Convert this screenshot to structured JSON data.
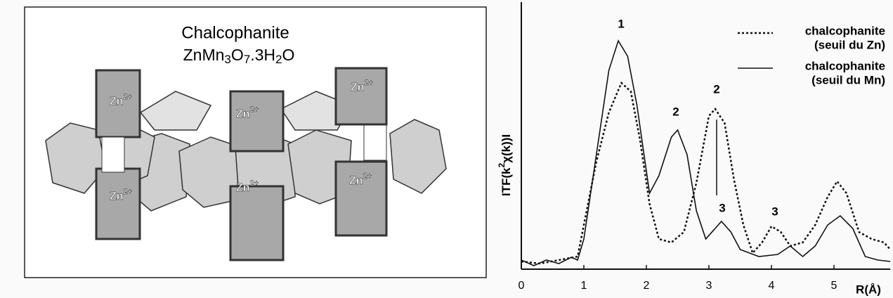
{
  "diagram": {
    "title": "Chalcophanite",
    "formula": [
      "ZnMn",
      "3",
      "O",
      "7",
      ".3H",
      "2",
      "O"
    ],
    "ions": [
      {
        "base": "Zn",
        "charge": "2+"
      },
      {
        "base": "Zn",
        "charge": "2+"
      },
      {
        "base": "Zn",
        "charge": "2+"
      },
      {
        "base": "Zn",
        "charge": "2+"
      },
      {
        "base": "Zn",
        "charge": "2+"
      },
      {
        "base": "Zn",
        "charge": "2+"
      }
    ]
  },
  "chart_data": {
    "type": "line",
    "xlabel": "R(Å)",
    "ylabel": [
      "ITF(k",
      "2",
      "χ(k))I"
    ],
    "xlim": [
      0,
      5.9
    ],
    "xticks": [
      0,
      1,
      2,
      3,
      4,
      5
    ],
    "ylim": [
      0,
      380
    ],
    "series": [
      {
        "name": [
          "chalcophanite",
          "(seuil du Zn)"
        ],
        "color": "#111",
        "dash": true,
        "x": [
          0,
          0.3,
          0.6,
          0.9,
          1.0,
          1.2,
          1.4,
          1.6,
          1.75,
          1.9,
          2.05,
          2.2,
          2.4,
          2.6,
          2.8,
          3.0,
          3.1,
          3.25,
          3.4,
          3.55,
          3.7,
          3.85,
          4.0,
          4.15,
          4.3,
          4.5,
          4.7,
          4.9,
          5.05,
          5.2,
          5.4,
          5.6,
          5.8,
          5.9
        ],
        "values": [
          11,
          8,
          13,
          18,
          63,
          153,
          223,
          265,
          253,
          183,
          93,
          43,
          38,
          53,
          123,
          218,
          228,
          208,
          128,
          63,
          23,
          38,
          61,
          53,
          33,
          38,
          63,
          103,
          125,
          108,
          53,
          43,
          38,
          28
        ]
      },
      {
        "name": [
          "chalcophanite",
          "(seuil du Mn)"
        ],
        "color": "#111",
        "dash": false,
        "x": [
          0,
          0.2,
          0.4,
          0.6,
          0.8,
          0.9,
          1.0,
          1.2,
          1.4,
          1.55,
          1.7,
          1.85,
          2.05,
          2.2,
          2.4,
          2.5,
          2.65,
          2.8,
          2.95,
          3.1,
          3.2,
          3.35,
          3.5,
          3.8,
          4.1,
          4.3,
          4.5,
          4.7,
          4.9,
          5.1,
          5.3,
          5.5,
          5.7,
          5.9
        ],
        "values": [
          13,
          5,
          13,
          8,
          17,
          13,
          43,
          163,
          283,
          325,
          303,
          233,
          108,
          133,
          188,
          198,
          163,
          83,
          43,
          58,
          68,
          53,
          28,
          18,
          21,
          33,
          18,
          33,
          63,
          76,
          58,
          18,
          13,
          11
        ]
      }
    ],
    "annotations": [
      "1",
      "2",
      "2",
      "3",
      "3"
    ]
  }
}
